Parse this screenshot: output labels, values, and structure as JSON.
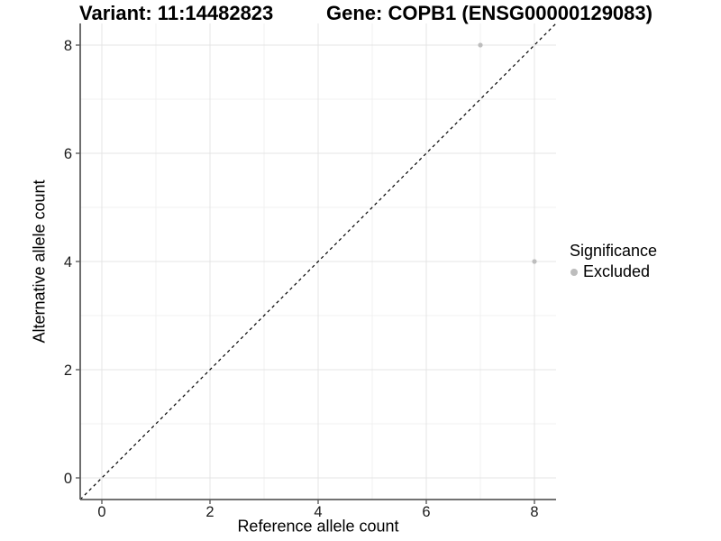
{
  "chart_data": {
    "type": "scatter",
    "titles": {
      "left": "Variant: 11:14482823",
      "right": "Gene: COPB1 (ENSG00000129083)"
    },
    "xlabel": "Reference allele count",
    "ylabel": "Alternative allele count",
    "xlim": [
      -0.4,
      8.4
    ],
    "ylim": [
      -0.4,
      8.4
    ],
    "xticks": [
      0,
      2,
      4,
      6,
      8
    ],
    "yticks": [
      0,
      2,
      4,
      6,
      8
    ],
    "xticks_minor": [
      1,
      3,
      5,
      7
    ],
    "yticks_minor": [
      1,
      3,
      5,
      7
    ],
    "grid": "on",
    "series": [
      {
        "name": "Excluded",
        "color": "#bdbdbd",
        "point_radius": 2.6,
        "points": [
          [
            7,
            8
          ],
          [
            8,
            4
          ]
        ]
      }
    ],
    "identity_line": {
      "style": "dashed",
      "color": "#000000",
      "from": [
        -0.4,
        -0.4
      ],
      "to": [
        8.4,
        8.4
      ]
    },
    "legend": {
      "title": "Significance",
      "position": "right",
      "entries": [
        {
          "label": "Excluded",
          "color": "#bdbdbd"
        }
      ]
    },
    "colors": {
      "axis_line": "#5e5e5e",
      "tick_label": "#1a1a1a",
      "grid_major": "#e4e4e4",
      "grid_minor": "#f0f0f0",
      "background": "#ffffff"
    }
  }
}
